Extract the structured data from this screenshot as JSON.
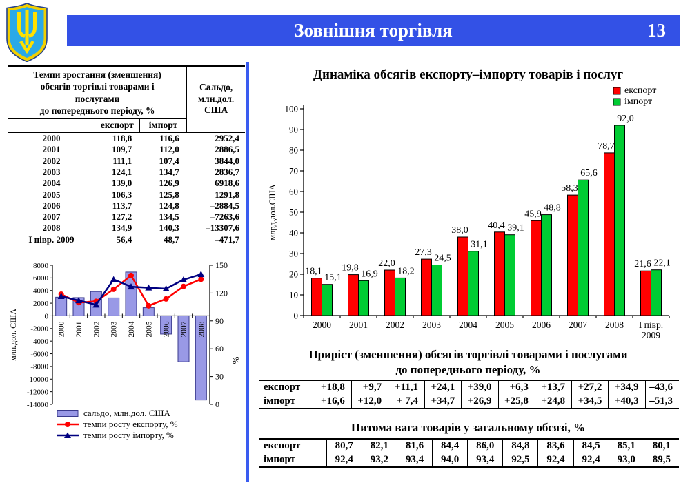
{
  "header": {
    "title": "Зовнішня торгівля",
    "page_number": "13"
  },
  "colors": {
    "header_blue": "#3351e6",
    "divider_blue": "#3a5cf0",
    "export_red": "#ff0000",
    "import_green": "#00cc33",
    "saldo_bar_fill": "#9999e6",
    "import_line_navy": "#000080"
  },
  "left_table": {
    "title": "Темпи зростання (зменшення)\nобсягів торгівлі товарами і\nпослугами\nдо попереднього періоду, %",
    "saldo_header": "Сальдо,\nмлн.дол.\nСША",
    "col_headers": {
      "export": "експорт",
      "import": "імпорт"
    },
    "rows": [
      {
        "period": "2000",
        "export": "118,8",
        "import": "116,6",
        "saldo": "2952,4"
      },
      {
        "period": "2001",
        "export": "109,7",
        "import": "112,0",
        "saldo": "2886,5"
      },
      {
        "period": "2002",
        "export": "111,1",
        "import": "107,4",
        "saldo": "3844,0"
      },
      {
        "period": "2003",
        "export": "124,1",
        "import": "134,7",
        "saldo": "2836,7"
      },
      {
        "period": "2004",
        "export": "139,0",
        "import": "126,9",
        "saldo": "6918,6"
      },
      {
        "period": "2005",
        "export": "106,3",
        "import": "125,8",
        "saldo": "1291,8"
      },
      {
        "period": "2006",
        "export": "113,7",
        "import": "124,8",
        "saldo": "–2884,5"
      },
      {
        "period": "2007",
        "export": "127,2",
        "import": "134,5",
        "saldo": "–7263,6"
      },
      {
        "period": "2008",
        "export": "134,9",
        "import": "140,3",
        "saldo": "–13307,6"
      },
      {
        "period": "І півр. 2009",
        "export": "56,4",
        "import": "48,7",
        "saldo": "–471,7"
      }
    ]
  },
  "chart_data": [
    {
      "type": "bar",
      "title": "Динаміка обсягів експорту–імпорту товарів і послуг",
      "categories": [
        "2000",
        "2001",
        "2002",
        "2003",
        "2004",
        "2005",
        "2006",
        "2007",
        "2008",
        "І півр.\n2009"
      ],
      "series": [
        {
          "name": "експорт",
          "color": "#ff0000",
          "values": [
            18.1,
            19.8,
            22.0,
            27.3,
            38.0,
            40.4,
            45.9,
            58.3,
            78.7,
            21.6
          ]
        },
        {
          "name": "імпорт",
          "color": "#00cc33",
          "values": [
            15.1,
            16.9,
            18.2,
            24.5,
            31.1,
            39.1,
            48.8,
            65.6,
            92.0,
            22.1
          ]
        }
      ],
      "ylabel": "млрд.дол.США",
      "ylim": [
        0,
        100
      ],
      "ytick_step": 10,
      "legend_position": "top-right",
      "grid": false
    },
    {
      "type": "combo",
      "categories": [
        "2000",
        "2001",
        "2002",
        "2003",
        "2004",
        "2005",
        "2006",
        "2007",
        "2008"
      ],
      "bar_series": {
        "name": "сальдо, млн.дол. США",
        "color": "#9999e6",
        "values": [
          2952.4,
          2886.5,
          3844.0,
          2836.7,
          6918.6,
          1291.8,
          -2884.5,
          -7263.6,
          -13307.6
        ]
      },
      "line_series": [
        {
          "name": "темпи росту експорту, %",
          "color": "#ff0000",
          "marker": "circle",
          "values": [
            118.8,
            109.7,
            111.1,
            124.1,
            139.0,
            106.3,
            113.7,
            127.2,
            134.9
          ]
        },
        {
          "name": "темпи росту імпорту, %",
          "color": "#000080",
          "marker": "triangle",
          "values": [
            116.6,
            112.0,
            107.4,
            134.7,
            126.9,
            125.8,
            124.8,
            134.5,
            140.3
          ]
        }
      ],
      "left_ylabel": "млн.дол. США",
      "left_ylim": [
        -14000,
        8000
      ],
      "left_tick_step": 2000,
      "right_ylabel": "%",
      "right_ylim": [
        0,
        150
      ],
      "right_tick_step": 30,
      "legend_position": "bottom-left",
      "grid": false
    }
  ],
  "growth_table": {
    "title_line1": "Приріст (зменшення) обсягів торгівлі товарами і послугами",
    "title_line2": "до попереднього періоду, %",
    "rows": [
      {
        "label": "експорт",
        "values": [
          "+18,8",
          "+9,7",
          "+11,1",
          "+24,1",
          "+39,0",
          "+6,3",
          "+13,7",
          "+27,2",
          "+34,9",
          "–43,6"
        ]
      },
      {
        "label": "імпорт",
        "values": [
          "+16,6",
          "+12,0",
          "+ 7,4",
          "+34,7",
          "+26,9",
          "+25,8",
          "+24,8",
          "+34,5",
          "+40,3",
          "–51,3"
        ]
      }
    ]
  },
  "share_table": {
    "title": "Питома вага товарів у загальному обсязі, %",
    "rows": [
      {
        "label": "експорт",
        "values": [
          "80,7",
          "82,1",
          "81,6",
          "84,4",
          "86,0",
          "84,8",
          "83,6",
          "84,5",
          "85,1",
          "80,1"
        ]
      },
      {
        "label": "імпорт",
        "values": [
          "92,4",
          "93,2",
          "93,4",
          "94,0",
          "93,4",
          "92,5",
          "92,4",
          "92,4",
          "93,0",
          "89,5"
        ]
      }
    ]
  }
}
